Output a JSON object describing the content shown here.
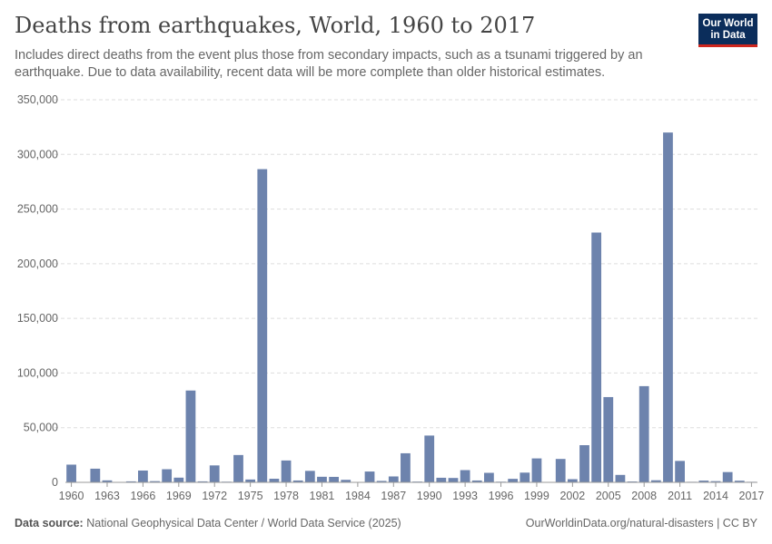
{
  "header": {
    "title": "Deaths from earthquakes, World, 1960 to 2017",
    "subtitle": "Includes direct deaths from the event plus those from secondary impacts, such as a tsunami triggered by an earthquake. Due to data availability, recent data will be more complete than older historical estimates."
  },
  "logo": {
    "line1": "Our World",
    "line2": "in Data"
  },
  "footer": {
    "source_label": "Data source:",
    "source_text": "National Geophysical Data Center / World Data Service (2025)",
    "url": "OurWorldinData.org/natural-disasters | CC BY"
  },
  "colors": {
    "bar": "#6d83ad",
    "grid": "#dddddd",
    "axis": "#999999"
  },
  "chart_data": {
    "type": "bar",
    "title": "Deaths from earthquakes, World, 1960 to 2017",
    "xlabel": "",
    "ylabel": "",
    "ylim": [
      0,
      350000
    ],
    "yticks": [
      0,
      50000,
      100000,
      150000,
      200000,
      250000,
      300000,
      350000
    ],
    "ytick_labels": [
      "0",
      "50,000",
      "100,000",
      "150,000",
      "200,000",
      "250,000",
      "300,000",
      "350,000"
    ],
    "xtick_labels": [
      "1960",
      "1963",
      "1966",
      "1969",
      "1972",
      "1975",
      "1978",
      "1981",
      "1984",
      "1987",
      "1990",
      "1993",
      "1996",
      "1999",
      "2002",
      "2005",
      "2008",
      "2011",
      "2014",
      "2017"
    ],
    "categories": [
      1960,
      1961,
      1962,
      1963,
      1964,
      1965,
      1966,
      1967,
      1968,
      1969,
      1970,
      1971,
      1972,
      1973,
      1974,
      1975,
      1976,
      1977,
      1978,
      1979,
      1980,
      1981,
      1982,
      1983,
      1984,
      1985,
      1986,
      1987,
      1988,
      1989,
      1990,
      1991,
      1992,
      1993,
      1994,
      1995,
      1996,
      1997,
      1998,
      1999,
      2000,
      2001,
      2002,
      2003,
      2004,
      2005,
      2006,
      2007,
      2008,
      2009,
      2010,
      2011,
      2012,
      2013,
      2014,
      2015,
      2016,
      2017
    ],
    "values": [
      16200,
      200,
      12500,
      1800,
      200,
      900,
      10800,
      1100,
      12000,
      4300,
      84000,
      900,
      15500,
      600,
      25000,
      2600,
      286500,
      3300,
      20000,
      1700,
      10500,
      5100,
      5000,
      2300,
      400,
      9900,
      1300,
      5400,
      26600,
      700,
      42800,
      4200,
      4000,
      11200,
      1700,
      8700,
      600,
      3200,
      8900,
      21900,
      300,
      21400,
      2900,
      34000,
      228500,
      78000,
      6800,
      800,
      88000,
      1900,
      320000,
      19600,
      500,
      1600,
      1100,
      9400,
      1500,
      500
    ]
  }
}
